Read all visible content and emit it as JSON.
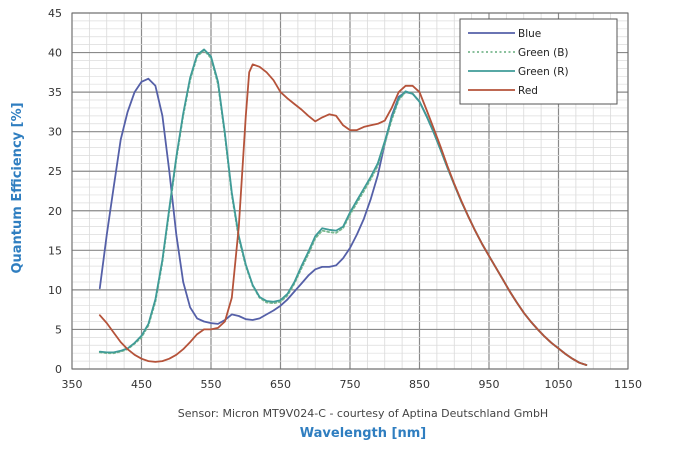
{
  "chart_data": {
    "type": "line",
    "xlabel": "Wavelength [nm]",
    "ylabel": "Quantum Efficiency [%]",
    "caption": "Sensor: Micron MT9V024-C - courtesy of Aptina Deutschland GmbH",
    "xlim": [
      350,
      1150
    ],
    "ylim": [
      0,
      45
    ],
    "x_ticks": [
      350,
      450,
      550,
      650,
      750,
      850,
      950,
      1050,
      1150
    ],
    "y_ticks": [
      0,
      5,
      10,
      15,
      20,
      25,
      30,
      35,
      40,
      45
    ],
    "grid": true,
    "legend_position": "top-right",
    "series": [
      {
        "name": "Blue",
        "color": "#5560a8",
        "dash": "solid",
        "points": [
          [
            390,
            10.2
          ],
          [
            400,
            17
          ],
          [
            410,
            23
          ],
          [
            420,
            29
          ],
          [
            430,
            32.5
          ],
          [
            440,
            35
          ],
          [
            450,
            36.3
          ],
          [
            460,
            36.7
          ],
          [
            470,
            35.8
          ],
          [
            480,
            32
          ],
          [
            490,
            25
          ],
          [
            500,
            17
          ],
          [
            510,
            11
          ],
          [
            520,
            7.8
          ],
          [
            530,
            6.4
          ],
          [
            540,
            6
          ],
          [
            550,
            5.8
          ],
          [
            560,
            5.7
          ],
          [
            570,
            6.2
          ],
          [
            580,
            6.9
          ],
          [
            590,
            6.7
          ],
          [
            600,
            6.3
          ],
          [
            610,
            6.2
          ],
          [
            620,
            6.4
          ],
          [
            630,
            6.9
          ],
          [
            640,
            7.4
          ],
          [
            650,
            8
          ],
          [
            660,
            8.8
          ],
          [
            670,
            9.8
          ],
          [
            680,
            10.8
          ],
          [
            690,
            11.8
          ],
          [
            700,
            12.6
          ],
          [
            710,
            12.9
          ],
          [
            720,
            12.9
          ],
          [
            730,
            13.1
          ],
          [
            740,
            14
          ],
          [
            750,
            15.3
          ],
          [
            760,
            17
          ],
          [
            770,
            19
          ],
          [
            780,
            21.5
          ],
          [
            790,
            24.5
          ],
          [
            800,
            28.5
          ],
          [
            810,
            32
          ],
          [
            820,
            34.4
          ],
          [
            830,
            35
          ],
          [
            840,
            34.8
          ],
          [
            850,
            33.8
          ],
          [
            860,
            32
          ],
          [
            870,
            30
          ],
          [
            880,
            27.8
          ],
          [
            890,
            25.5
          ],
          [
            900,
            23.3
          ],
          [
            910,
            21.2
          ],
          [
            920,
            19.3
          ],
          [
            930,
            17.5
          ],
          [
            940,
            15.8
          ],
          [
            950,
            14.3
          ],
          [
            960,
            12.8
          ],
          [
            970,
            11.3
          ],
          [
            980,
            9.8
          ],
          [
            990,
            8.4
          ],
          [
            1000,
            7.1
          ],
          [
            1010,
            6
          ],
          [
            1020,
            5
          ],
          [
            1030,
            4.1
          ],
          [
            1040,
            3.3
          ],
          [
            1050,
            2.6
          ],
          [
            1060,
            1.9
          ],
          [
            1070,
            1.3
          ],
          [
            1080,
            0.8
          ],
          [
            1090,
            0.5
          ]
        ]
      },
      {
        "name": "Green (B)",
        "color": "#7ab88f",
        "dash": "dotted",
        "points": [
          [
            390,
            2.1
          ],
          [
            400,
            2
          ],
          [
            410,
            2
          ],
          [
            420,
            2.2
          ],
          [
            430,
            2.5
          ],
          [
            440,
            3.2
          ],
          [
            450,
            4
          ],
          [
            460,
            5.5
          ],
          [
            470,
            8.5
          ],
          [
            480,
            13.5
          ],
          [
            490,
            20
          ],
          [
            500,
            26.5
          ],
          [
            510,
            32
          ],
          [
            520,
            36.5
          ],
          [
            530,
            39.5
          ],
          [
            540,
            40.3
          ],
          [
            550,
            39.3
          ],
          [
            560,
            36
          ],
          [
            570,
            29.5
          ],
          [
            580,
            22
          ],
          [
            590,
            16.5
          ],
          [
            600,
            13
          ],
          [
            610,
            10.5
          ],
          [
            620,
            9
          ],
          [
            630,
            8.4
          ],
          [
            640,
            8.3
          ],
          [
            650,
            8.5
          ],
          [
            660,
            9.3
          ],
          [
            670,
            10.8
          ],
          [
            680,
            12.7
          ],
          [
            690,
            14.5
          ],
          [
            700,
            16.5
          ],
          [
            710,
            17.5
          ],
          [
            720,
            17.3
          ],
          [
            730,
            17.2
          ],
          [
            740,
            17.8
          ],
          [
            750,
            19.5
          ],
          [
            760,
            21
          ],
          [
            770,
            22.5
          ],
          [
            780,
            24
          ],
          [
            790,
            25.7
          ],
          [
            800,
            28.5
          ],
          [
            810,
            31.5
          ],
          [
            820,
            34
          ],
          [
            830,
            35
          ],
          [
            840,
            34.8
          ],
          [
            850,
            33.8
          ],
          [
            860,
            32
          ],
          [
            870,
            30
          ],
          [
            880,
            27.8
          ],
          [
            890,
            25.5
          ],
          [
            900,
            23.3
          ],
          [
            910,
            21.2
          ],
          [
            920,
            19.3
          ],
          [
            930,
            17.5
          ],
          [
            940,
            15.8
          ],
          [
            950,
            14.3
          ],
          [
            960,
            12.8
          ],
          [
            970,
            11.3
          ],
          [
            980,
            9.8
          ],
          [
            990,
            8.4
          ],
          [
            1000,
            7.1
          ],
          [
            1010,
            6
          ],
          [
            1020,
            5
          ],
          [
            1030,
            4.1
          ],
          [
            1040,
            3.3
          ],
          [
            1050,
            2.6
          ],
          [
            1060,
            1.9
          ],
          [
            1070,
            1.3
          ],
          [
            1080,
            0.8
          ],
          [
            1090,
            0.5
          ]
        ]
      },
      {
        "name": "Green (R)",
        "color": "#3f9b98",
        "dash": "solid",
        "points": [
          [
            390,
            2.2
          ],
          [
            400,
            2.1
          ],
          [
            410,
            2.1
          ],
          [
            420,
            2.3
          ],
          [
            430,
            2.6
          ],
          [
            440,
            3.3
          ],
          [
            450,
            4.2
          ],
          [
            460,
            5.7
          ],
          [
            470,
            8.8
          ],
          [
            480,
            13.8
          ],
          [
            490,
            20.3
          ],
          [
            500,
            26.8
          ],
          [
            510,
            32.3
          ],
          [
            520,
            36.8
          ],
          [
            530,
            39.7
          ],
          [
            540,
            40.4
          ],
          [
            550,
            39.5
          ],
          [
            560,
            36.3
          ],
          [
            570,
            29.8
          ],
          [
            580,
            22.3
          ],
          [
            590,
            16.8
          ],
          [
            600,
            13.2
          ],
          [
            610,
            10.6
          ],
          [
            620,
            9.1
          ],
          [
            630,
            8.6
          ],
          [
            640,
            8.5
          ],
          [
            650,
            8.7
          ],
          [
            660,
            9.5
          ],
          [
            670,
            11
          ],
          [
            680,
            13
          ],
          [
            690,
            14.8
          ],
          [
            700,
            16.8
          ],
          [
            710,
            17.8
          ],
          [
            720,
            17.6
          ],
          [
            730,
            17.5
          ],
          [
            740,
            18
          ],
          [
            750,
            19.8
          ],
          [
            760,
            21.3
          ],
          [
            770,
            22.8
          ],
          [
            780,
            24.3
          ],
          [
            790,
            26
          ],
          [
            800,
            28.8
          ],
          [
            810,
            31.8
          ],
          [
            820,
            34.2
          ],
          [
            830,
            35.1
          ],
          [
            840,
            34.8
          ],
          [
            850,
            33.8
          ],
          [
            860,
            32
          ],
          [
            870,
            30
          ],
          [
            880,
            27.8
          ],
          [
            890,
            25.5
          ],
          [
            900,
            23.3
          ],
          [
            910,
            21.2
          ],
          [
            920,
            19.3
          ],
          [
            930,
            17.5
          ],
          [
            940,
            15.8
          ],
          [
            950,
            14.3
          ],
          [
            960,
            12.8
          ],
          [
            970,
            11.3
          ],
          [
            980,
            9.8
          ],
          [
            990,
            8.4
          ],
          [
            1000,
            7.1
          ],
          [
            1010,
            6
          ],
          [
            1020,
            5
          ],
          [
            1030,
            4.1
          ],
          [
            1040,
            3.3
          ],
          [
            1050,
            2.6
          ],
          [
            1060,
            1.9
          ],
          [
            1070,
            1.3
          ],
          [
            1080,
            0.8
          ],
          [
            1090,
            0.5
          ]
        ]
      },
      {
        "name": "Red",
        "color": "#b5533a",
        "dash": "solid",
        "points": [
          [
            390,
            6.8
          ],
          [
            400,
            5.8
          ],
          [
            410,
            4.6
          ],
          [
            420,
            3.4
          ],
          [
            430,
            2.5
          ],
          [
            440,
            1.8
          ],
          [
            450,
            1.3
          ],
          [
            460,
            1
          ],
          [
            470,
            0.9
          ],
          [
            480,
            1
          ],
          [
            490,
            1.3
          ],
          [
            500,
            1.8
          ],
          [
            510,
            2.5
          ],
          [
            520,
            3.4
          ],
          [
            530,
            4.4
          ],
          [
            540,
            5
          ],
          [
            550,
            5
          ],
          [
            560,
            5.2
          ],
          [
            570,
            6
          ],
          [
            580,
            9
          ],
          [
            590,
            18
          ],
          [
            600,
            32
          ],
          [
            605,
            37.5
          ],
          [
            610,
            38.5
          ],
          [
            620,
            38.2
          ],
          [
            630,
            37.5
          ],
          [
            640,
            36.5
          ],
          [
            650,
            35
          ],
          [
            660,
            34.2
          ],
          [
            670,
            33.5
          ],
          [
            680,
            32.8
          ],
          [
            690,
            32
          ],
          [
            700,
            31.3
          ],
          [
            710,
            31.8
          ],
          [
            720,
            32.2
          ],
          [
            730,
            32
          ],
          [
            740,
            30.8
          ],
          [
            750,
            30.2
          ],
          [
            760,
            30.2
          ],
          [
            770,
            30.6
          ],
          [
            780,
            30.8
          ],
          [
            790,
            31
          ],
          [
            800,
            31.4
          ],
          [
            810,
            33
          ],
          [
            820,
            35
          ],
          [
            830,
            35.8
          ],
          [
            840,
            35.8
          ],
          [
            850,
            35
          ],
          [
            860,
            32.8
          ],
          [
            870,
            30.5
          ],
          [
            880,
            28.2
          ],
          [
            890,
            25.7
          ],
          [
            900,
            23.4
          ],
          [
            910,
            21.3
          ],
          [
            920,
            19.3
          ],
          [
            930,
            17.5
          ],
          [
            940,
            15.8
          ],
          [
            950,
            14.3
          ],
          [
            960,
            12.8
          ],
          [
            970,
            11.3
          ],
          [
            980,
            9.8
          ],
          [
            990,
            8.4
          ],
          [
            1000,
            7.1
          ],
          [
            1010,
            6
          ],
          [
            1020,
            5
          ],
          [
            1030,
            4.1
          ],
          [
            1040,
            3.3
          ],
          [
            1050,
            2.6
          ],
          [
            1060,
            1.9
          ],
          [
            1070,
            1.3
          ],
          [
            1080,
            0.8
          ],
          [
            1090,
            0.5
          ]
        ]
      }
    ]
  }
}
